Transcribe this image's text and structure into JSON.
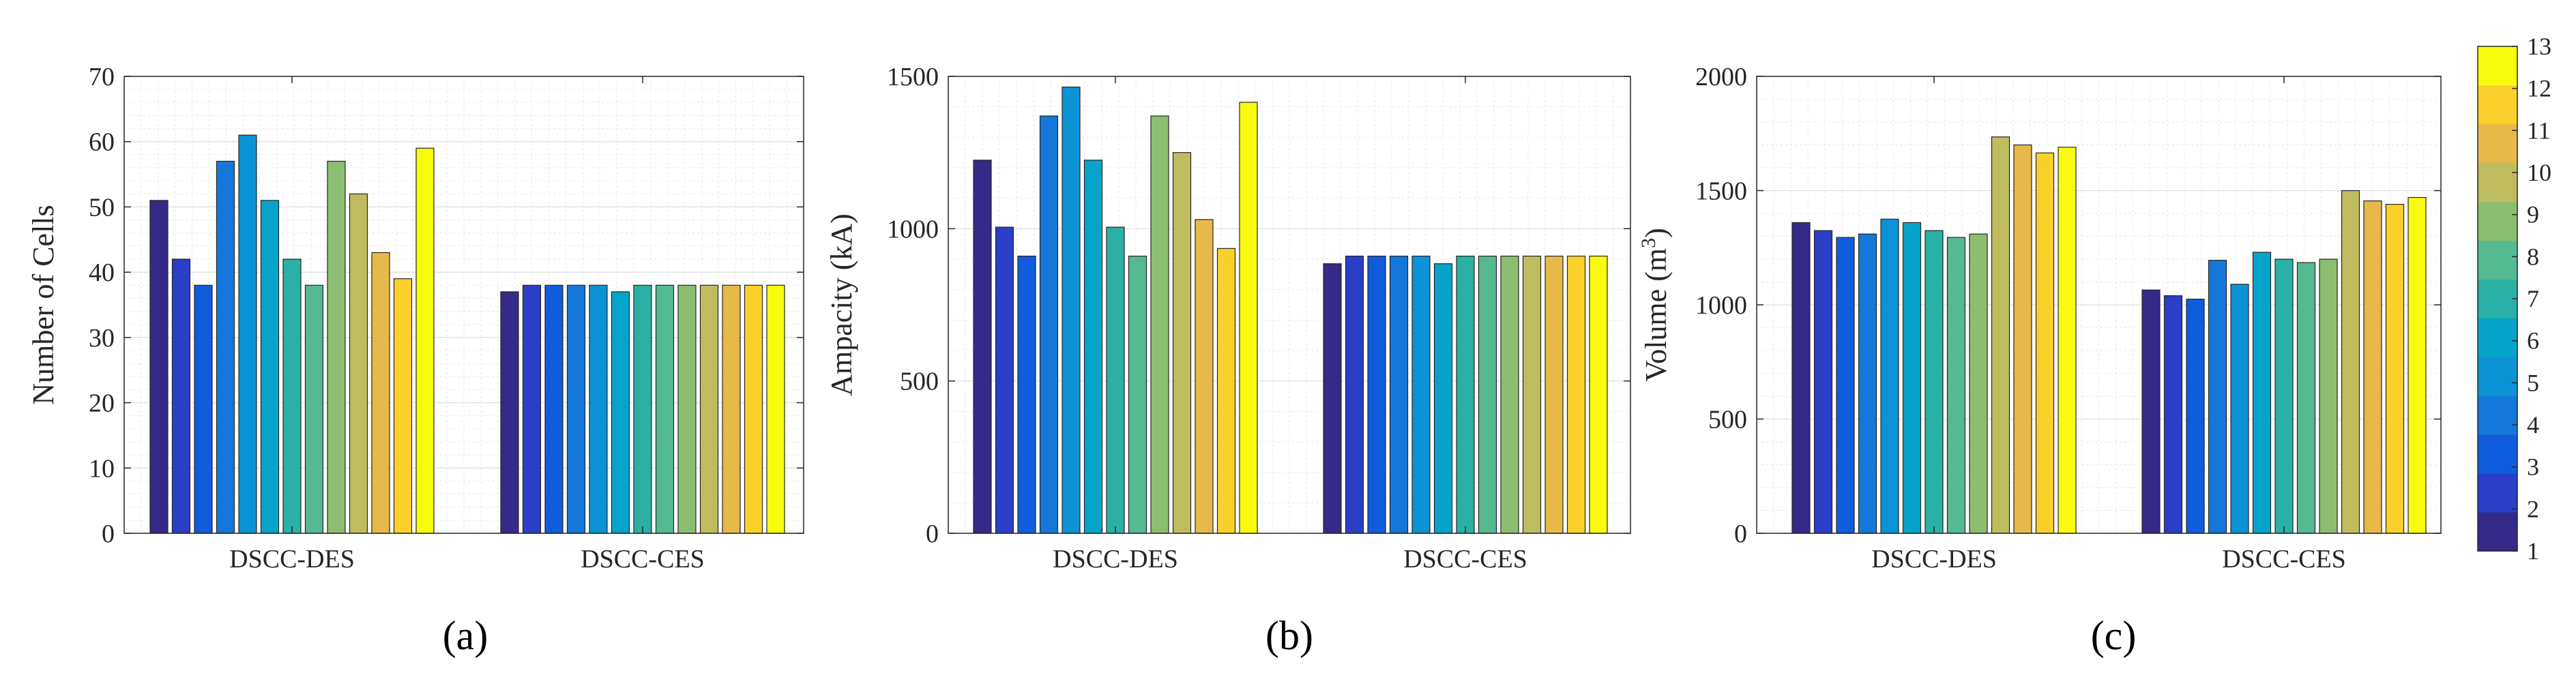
{
  "chart_data": [
    {
      "type": "bar",
      "caption": "(a)",
      "ylabel": "Number of Cells",
      "ylim": [
        0,
        70
      ],
      "yticks": [
        0,
        10,
        20,
        30,
        40,
        50,
        60,
        70
      ],
      "categories": [
        "DSCC-DES",
        "DSCC-CES"
      ],
      "series_names": [
        "1",
        "2",
        "3",
        "4",
        "5",
        "6",
        "7",
        "8",
        "9",
        "10",
        "11",
        "12",
        "13"
      ],
      "values": [
        [
          51,
          42,
          38,
          57,
          61,
          51,
          42,
          38,
          57,
          52,
          43,
          39,
          59
        ],
        [
          37,
          38,
          38,
          38,
          38,
          37,
          38,
          38,
          38,
          38,
          38,
          38,
          38
        ]
      ]
    },
    {
      "type": "bar",
      "caption": "(b)",
      "ylabel": "Ampacity (kA)",
      "ylim": [
        0,
        1500
      ],
      "yticks": [
        0,
        500,
        1000,
        1500
      ],
      "categories": [
        "DSCC-DES",
        "DSCC-CES"
      ],
      "series_names": [
        "1",
        "2",
        "3",
        "4",
        "5",
        "6",
        "7",
        "8",
        "9",
        "10",
        "11",
        "12",
        "13"
      ],
      "values": [
        [
          1225,
          1005,
          910,
          1370,
          1465,
          1225,
          1005,
          910,
          1370,
          1250,
          1030,
          935,
          1415
        ],
        [
          885,
          910,
          910,
          910,
          910,
          885,
          910,
          910,
          910,
          910,
          910,
          910,
          910
        ]
      ]
    },
    {
      "type": "bar",
      "caption": "(c)",
      "ylabel": "Volume (m",
      "ylabel_sup": "3",
      "ylabel_end": ")",
      "ylim": [
        0,
        2000
      ],
      "yticks": [
        0,
        500,
        1000,
        1500,
        2000
      ],
      "categories": [
        "DSCC-DES",
        "DSCC-CES"
      ],
      "series_names": [
        "1",
        "2",
        "3",
        "4",
        "5",
        "6",
        "7",
        "8",
        "9",
        "10",
        "11",
        "12",
        "13"
      ],
      "values": [
        [
          1360,
          1325,
          1295,
          1310,
          1375,
          1360,
          1325,
          1295,
          1310,
          1735,
          1700,
          1665,
          1690
        ],
        [
          1065,
          1040,
          1025,
          1195,
          1090,
          1230,
          1200,
          1185,
          1200,
          1500,
          1455,
          1440,
          1470
        ]
      ]
    }
  ],
  "colorbar": {
    "min": 1,
    "max": 13,
    "ticks": [
      "1",
      "2",
      "3",
      "4",
      "5",
      "6",
      "7",
      "8",
      "9",
      "10",
      "11",
      "12",
      "13"
    ]
  },
  "colors": [
    "#352a87",
    "#2a3ec7",
    "#0f5cdd",
    "#1577da",
    "#0c93d5",
    "#06a4ca",
    "#2ab0a4",
    "#55b991",
    "#8cbe71",
    "#bebc5f",
    "#e7b84a",
    "#fbd02b",
    "#f9fb0e"
  ]
}
